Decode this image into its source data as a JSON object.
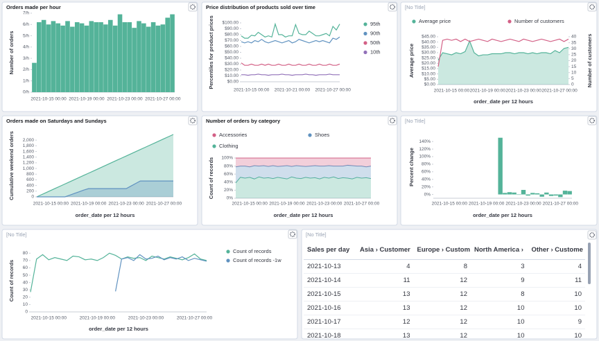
{
  "chart_data": [
    {
      "type": "bar",
      "title": "Orders made per hour",
      "y_title": "Number of orders",
      "categories": [
        null,
        null,
        null,
        "2021-10-15 00:00",
        null,
        null,
        null,
        null,
        null,
        null,
        null,
        "2021-10-19 00:00",
        null,
        null,
        null,
        null,
        null,
        null,
        null,
        "2021-10-23 00:00",
        null,
        null,
        null,
        null,
        null,
        null,
        null,
        "2021-10-27 00:00",
        null,
        null
      ],
      "series": [
        {
          "color": "#54b399",
          "values": [
            2.6,
            6.2,
            6.4,
            6.0,
            6.3,
            6.1,
            5.9,
            6.3,
            5.8,
            6.2,
            6.1,
            5.9,
            6.3,
            6.2,
            6.2,
            6.0,
            6.4,
            5.9,
            6.9,
            6.2,
            6.2,
            5.7,
            6.3,
            6.1,
            5.8,
            6.2,
            5.9,
            6.0,
            6.6,
            6.9
          ]
        }
      ],
      "ylim": [
        0,
        7
      ],
      "yticks": [
        {
          "value": 0,
          "label": "0/h"
        },
        {
          "value": 1,
          "label": "1/h"
        },
        {
          "value": 2,
          "label": "2/h"
        },
        {
          "value": 3,
          "label": "3/h"
        },
        {
          "value": 4,
          "label": "4/h"
        },
        {
          "value": 5,
          "label": "5/h"
        },
        {
          "value": 6,
          "label": "6/h"
        },
        {
          "value": 7,
          "label": "7/h"
        }
      ]
    },
    {
      "type": "line",
      "title": "Price distribution of products sold over time",
      "y_title": "Percentiles for product prices",
      "categories": [
        null,
        null,
        null,
        "2021-10-15 00:00",
        null,
        null,
        null,
        null,
        null,
        null,
        null,
        null,
        null,
        null,
        null,
        "2021-10-21 00:00",
        null,
        null,
        null,
        null,
        null,
        null,
        null,
        null,
        null,
        null,
        null,
        "2021-10-27 00:00",
        null,
        null
      ],
      "series": [
        {
          "name": "95th",
          "color": "#54b399",
          "values": [
            78,
            74,
            74,
            79,
            78,
            84,
            80,
            76,
            78,
            76,
            98,
            80,
            80,
            76,
            78,
            78,
            97,
            82,
            80,
            80,
            86,
            82,
            78,
            78,
            80,
            82,
            78,
            94,
            88,
            98
          ]
        },
        {
          "name": "90th",
          "color": "#6092c0",
          "values": [
            68,
            66,
            68,
            66,
            70,
            68,
            72,
            68,
            66,
            68,
            70,
            68,
            66,
            68,
            70,
            66,
            68,
            72,
            70,
            68,
            66,
            68,
            70,
            68,
            70,
            68,
            66,
            74,
            72,
            76
          ]
        },
        {
          "name": "50th",
          "color": "#d36086",
          "values": [
            32,
            28,
            28,
            30,
            28,
            28,
            30,
            28,
            30,
            28,
            28,
            30,
            28,
            28,
            30,
            28,
            28,
            30,
            28,
            28,
            30,
            28,
            28,
            30,
            28,
            28,
            30,
            28,
            28,
            30
          ]
        },
        {
          "name": "10th",
          "color": "#9170b8",
          "values": [
            12,
            12,
            11,
            12,
            12,
            13,
            12,
            12,
            11,
            12,
            12,
            12,
            13,
            12,
            12,
            11,
            12,
            12,
            12,
            13,
            12,
            12,
            11,
            12,
            12,
            12,
            13,
            12,
            12,
            12
          ]
        }
      ],
      "legend": "right",
      "ylim": [
        0,
        100
      ],
      "yticks": [
        {
          "value": 0,
          "label": "$0.00"
        },
        {
          "value": 10,
          "label": "$10.00"
        },
        {
          "value": 20,
          "label": "$20.00"
        },
        {
          "value": 30,
          "label": "$30.00"
        },
        {
          "value": 40,
          "label": "$40.00"
        },
        {
          "value": 50,
          "label": "$50.00"
        },
        {
          "value": 60,
          "label": "$60.00"
        },
        {
          "value": 70,
          "label": "$70.00"
        },
        {
          "value": 80,
          "label": "$80.00"
        },
        {
          "value": 90,
          "label": "$90.00"
        },
        {
          "value": 100,
          "label": "$100.00"
        }
      ]
    },
    {
      "type": "line",
      "title": "[No Title]",
      "y_title": "Average price",
      "y2_title": "Number of customers",
      "x_title": "order_date per 12 hours",
      "categories": [
        null,
        null,
        null,
        "2021-10-15 00:00",
        null,
        null,
        null,
        null,
        null,
        null,
        null,
        "2021-10-19 00:00",
        null,
        null,
        null,
        null,
        null,
        null,
        null,
        "2021-10-23 00:00",
        null,
        null,
        null,
        null,
        null,
        null,
        null,
        "2021-10-27 00:00",
        null,
        null
      ],
      "series": [
        {
          "name": "Average price",
          "color": "#54b399",
          "area": true,
          "values": [
            23,
            30,
            29,
            28,
            30,
            29,
            31,
            41,
            30,
            27,
            28,
            28,
            29,
            29,
            29,
            30,
            30,
            29,
            30,
            30,
            29,
            30,
            29,
            30,
            30,
            29,
            32,
            30,
            34,
            35
          ]
        },
        {
          "name": "Number of customers",
          "color": "#d36086",
          "axis": "y2",
          "values": [
            15,
            37,
            38,
            37,
            38,
            36,
            38,
            36,
            37,
            38,
            37,
            36,
            38,
            37,
            36,
            37,
            38,
            37,
            36,
            38,
            37,
            36,
            37,
            38,
            37,
            36,
            37,
            38,
            36,
            38
          ]
        }
      ],
      "legend": "top",
      "ylim": [
        0,
        45
      ],
      "yticks": [
        {
          "value": 0,
          "label": "$0.00"
        },
        {
          "value": 5,
          "label": "$5.00"
        },
        {
          "value": 10,
          "label": "$10.00"
        },
        {
          "value": 15,
          "label": "$15.00"
        },
        {
          "value": 20,
          "label": "$20.00"
        },
        {
          "value": 25,
          "label": "$25.00"
        },
        {
          "value": 30,
          "label": "$30.00"
        },
        {
          "value": 35,
          "label": "$35.00"
        },
        {
          "value": 40,
          "label": "$40.00"
        },
        {
          "value": 45,
          "label": "$45.00"
        }
      ],
      "y2lim": [
        0,
        40
      ],
      "y2ticks": [
        0,
        5,
        10,
        15,
        20,
        25,
        30,
        35,
        40
      ]
    },
    {
      "type": "line",
      "title": "Orders made on Saturdays and Sundays",
      "y_title": "Cumulative weekend orders",
      "x_title": "order_date per 12 hours",
      "categories": [
        null,
        null,
        null,
        "2021-10-15 00:00",
        null,
        null,
        null,
        null,
        null,
        null,
        null,
        "2021-10-19 00:00",
        null,
        null,
        null,
        null,
        null,
        null,
        null,
        "2021-10-23 00:00",
        null,
        null,
        null,
        null,
        null,
        null,
        null,
        "2021-10-27 00:00",
        null,
        null
      ],
      "series": [
        {
          "color": "#54b399",
          "area": true,
          "values": [
            0,
            76,
            152,
            228,
            303,
            379,
            455,
            531,
            607,
            683,
            759,
            834,
            910,
            986,
            1062,
            1138,
            1214,
            1290,
            1366,
            1441,
            1517,
            1593,
            1669,
            1745,
            1821,
            1897,
            1972,
            2048,
            2124,
            2200
          ]
        },
        {
          "color": "#6092c0",
          "area": true,
          "values": [
            0,
            0,
            0,
            0,
            0,
            0,
            0,
            60,
            120,
            180,
            240,
            290,
            290,
            290,
            290,
            290,
            290,
            290,
            290,
            290,
            380,
            470,
            560,
            560,
            560,
            560,
            560,
            560,
            560,
            560
          ]
        }
      ],
      "ylim": [
        0,
        2200
      ],
      "yticks": [
        0,
        200,
        400,
        600,
        800,
        {
          "value": 1000,
          "label": "1,000"
        },
        {
          "value": 1200,
          "label": "1,200"
        },
        {
          "value": 1400,
          "label": "1,400"
        },
        {
          "value": 1600,
          "label": "1,600"
        },
        {
          "value": 1800,
          "label": "1,800"
        },
        {
          "value": 2000,
          "label": "2,000"
        }
      ]
    },
    {
      "type": "area",
      "stacked": true,
      "title": "Number of orders by category",
      "y_title": "Count of records",
      "x_title": "order_date per 12 hours",
      "categories": [
        null,
        null,
        null,
        "2021-10-15 00:00",
        null,
        null,
        null,
        null,
        null,
        null,
        null,
        "2021-10-19 00:00",
        null,
        null,
        null,
        null,
        null,
        null,
        null,
        "2021-10-23 00:00",
        null,
        null,
        null,
        null,
        null,
        null,
        null,
        "2021-10-27 00:00",
        null,
        null
      ],
      "series": [
        {
          "name": "Accessories",
          "color": "#d36086",
          "values": [
            22,
            20,
            20,
            22,
            19,
            20,
            19,
            21,
            19,
            21,
            20,
            19,
            21,
            19,
            20,
            21,
            20,
            19,
            20,
            20,
            19,
            20,
            20,
            20,
            18,
            19,
            20,
            20,
            22,
            20
          ]
        },
        {
          "name": "Shoes",
          "color": "#6092c0",
          "values": [
            40,
            28,
            30,
            26,
            33,
            27,
            31,
            28,
            32,
            27,
            30,
            33,
            26,
            31,
            31,
            27,
            30,
            30,
            32,
            28,
            31,
            27,
            31,
            29,
            32,
            33,
            28,
            30,
            27,
            31
          ]
        },
        {
          "name": "Clothing",
          "color": "#54b399",
          "values": [
            38,
            52,
            50,
            52,
            48,
            53,
            50,
            51,
            49,
            52,
            50,
            48,
            53,
            50,
            49,
            52,
            50,
            51,
            48,
            52,
            50,
            53,
            49,
            51,
            50,
            48,
            52,
            50,
            51,
            49
          ]
        }
      ],
      "legend": "top",
      "ylim": [
        0,
        100
      ],
      "yticks": [
        {
          "value": 0,
          "label": "0%"
        },
        {
          "value": 20,
          "label": "20%"
        },
        {
          "value": 40,
          "label": "40%"
        },
        {
          "value": 60,
          "label": "60%"
        },
        {
          "value": 80,
          "label": "80%"
        },
        {
          "value": 100,
          "label": "100%"
        }
      ]
    },
    {
      "type": "bar",
      "title": "[No Title]",
      "y_title": "Percent change",
      "x_title": "order_date per 12 hours",
      "categories": [
        null,
        null,
        null,
        "2021-10-15 00:00",
        null,
        null,
        null,
        null,
        null,
        null,
        null,
        "2021-10-19 00:00",
        null,
        null,
        null,
        null,
        null,
        null,
        null,
        "2021-10-23 00:00",
        null,
        null,
        null,
        null,
        null,
        null,
        null,
        "2021-10-27 00:00",
        null,
        null
      ],
      "series": [
        {
          "color": "#54b399",
          "values": [
            null,
            null,
            null,
            null,
            null,
            null,
            null,
            null,
            null,
            null,
            null,
            null,
            null,
            null,
            150,
            4,
            6,
            5,
            -1,
            12,
            -3,
            4,
            3,
            -6,
            5,
            -4,
            -3,
            -7,
            10,
            9
          ]
        }
      ],
      "ylim": [
        -10,
        155
      ],
      "yticks": [
        {
          "value": 0,
          "label": "0%"
        },
        {
          "value": 20,
          "label": "20%"
        },
        {
          "value": 40,
          "label": "40%"
        },
        {
          "value": 60,
          "label": "60%"
        },
        {
          "value": 80,
          "label": "80%"
        },
        {
          "value": 100,
          "label": "100%"
        },
        {
          "value": 120,
          "label": "120%"
        },
        {
          "value": 140,
          "label": "140%"
        }
      ]
    },
    {
      "type": "line",
      "title": "[No Title]",
      "y_title": "Count of records",
      "x_title": "order_date per 12 hours",
      "categories": [
        null,
        null,
        null,
        "2021-10-15 00:00",
        null,
        null,
        null,
        null,
        null,
        null,
        null,
        "2021-10-19 00:00",
        null,
        null,
        null,
        null,
        null,
        null,
        null,
        "2021-10-23 00:00",
        null,
        null,
        null,
        null,
        null,
        null,
        null,
        "2021-10-27 00:00",
        null,
        null
      ],
      "series": [
        {
          "name": "Count of records",
          "color": "#54b399",
          "values": [
            27,
            72,
            78,
            71,
            74,
            72,
            70,
            76,
            75,
            71,
            72,
            70,
            74,
            80,
            77,
            72,
            75,
            73,
            74,
            70,
            76,
            74,
            72,
            75,
            73,
            71,
            74,
            79,
            72,
            70
          ]
        },
        {
          "name": "Count of records -1w",
          "color": "#6092c0",
          "values": [
            null,
            null,
            null,
            null,
            null,
            null,
            null,
            null,
            null,
            null,
            null,
            null,
            null,
            null,
            28,
            72,
            74,
            70,
            78,
            72,
            73,
            76,
            71,
            74,
            72,
            75,
            70,
            73,
            71,
            69
          ]
        }
      ],
      "legend": "right",
      "ylim": [
        0,
        85
      ],
      "yticks": [
        0,
        10,
        20,
        30,
        40,
        50,
        60,
        70,
        80
      ]
    }
  ],
  "table": {
    "title": "[No Title]",
    "header": [
      "Sales per day",
      "Asia › Customer",
      "Europe › Custom",
      "North America ›",
      "Other › Custome"
    ],
    "rows": [
      [
        "2021-10-13",
        4,
        8,
        3,
        4
      ],
      [
        "2021-10-14",
        11,
        12,
        9,
        11
      ],
      [
        "2021-10-15",
        13,
        12,
        8,
        10
      ],
      [
        "2021-10-16",
        13,
        12,
        10,
        10
      ],
      [
        "2021-10-17",
        12,
        12,
        10,
        9
      ],
      [
        "2021-10-18",
        13,
        12,
        10,
        10
      ]
    ]
  }
}
